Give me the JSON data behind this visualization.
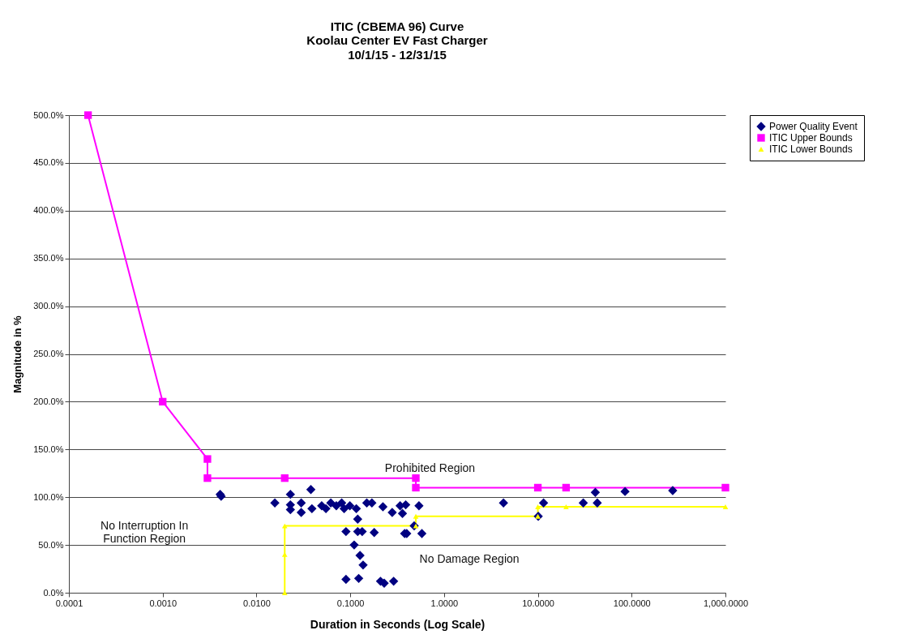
{
  "chart_data": {
    "type": "scatter",
    "title": "ITIC (CBEMA 96) Curve",
    "subtitle": "Koolau Center EV Fast Charger\n10/1/15 - 12/31/15",
    "xlabel": "Duration in Seconds (Log Scale)",
    "ylabel": "Magnitude in %",
    "log": "x",
    "grid": "y",
    "legend": "right",
    "xlim": [
      0.0001,
      1000
    ],
    "xticks": [
      {
        "value": 0.0001,
        "label": "0.0001"
      },
      {
        "value": 0.001,
        "label": "0.0010"
      },
      {
        "value": 0.01,
        "label": "0.0100"
      },
      {
        "value": 0.1,
        "label": "0.1000"
      },
      {
        "value": 1,
        "label": "1.0000"
      },
      {
        "value": 10,
        "label": "10.0000"
      },
      {
        "value": 100,
        "label": "100.0000"
      },
      {
        "value": 1000,
        "label": "1,000.0000"
      }
    ],
    "ylim": [
      0,
      500
    ],
    "yticks": [
      {
        "value": 0,
        "label": "0.0%"
      },
      {
        "value": 50,
        "label": "50.0%"
      },
      {
        "value": 100,
        "label": "100.0%"
      },
      {
        "value": 150,
        "label": "150.0%"
      },
      {
        "value": 200,
        "label": "200.0%"
      },
      {
        "value": 250,
        "label": "250.0%"
      },
      {
        "value": 300,
        "label": "300.0%"
      },
      {
        "value": 350,
        "label": "350.0%"
      },
      {
        "value": 400,
        "label": "400.0%"
      },
      {
        "value": 450,
        "label": "450.0%"
      },
      {
        "value": 500,
        "label": "500.0%"
      }
    ],
    "series": [
      {
        "name": "Power Quality Event",
        "type": "scatter",
        "marker": "diamond",
        "color": "#000080",
        "x": [
          0.0041,
          0.0042,
          0.0157,
          0.023,
          0.023,
          0.023,
          0.03,
          0.03,
          0.038,
          0.039,
          0.0496,
          0.055,
          0.062,
          0.071,
          0.081,
          0.086,
          0.099,
          0.116,
          0.12,
          0.09,
          0.12,
          0.134,
          0.11,
          0.127,
          0.137,
          0.09,
          0.123,
          0.15,
          0.17,
          0.18,
          0.223,
          0.21,
          0.23,
          0.29,
          0.28,
          0.34,
          0.36,
          0.38,
          0.4,
          0.39,
          0.54,
          0.48,
          0.58,
          4.3,
          10.1,
          11.5,
          30.5,
          41,
          43,
          85,
          274
        ],
        "values": [
          103,
          101,
          94,
          103,
          92,
          87,
          94,
          84,
          108,
          88,
          91,
          88,
          94,
          91,
          94,
          88,
          91,
          88,
          77,
          64,
          64,
          64,
          50,
          39,
          29,
          14,
          15,
          94,
          94,
          63,
          90,
          12,
          10,
          12,
          84,
          91,
          83,
          62,
          62,
          92,
          91,
          70,
          62,
          94,
          80,
          94,
          94,
          105,
          94,
          106,
          107
        ]
      },
      {
        "name": "ITIC Upper Bounds",
        "type": "line",
        "marker": "square",
        "color": "#ff00ff",
        "x": [
          0.00016,
          0.001,
          0.003,
          0.003,
          0.02,
          0.5,
          0.5,
          10,
          20,
          1000
        ],
        "values": [
          500,
          200,
          140,
          120,
          120,
          120,
          110,
          110,
          110,
          110
        ]
      },
      {
        "name": "ITIC Lower Bounds",
        "type": "line",
        "marker": "triangle",
        "color": "#ffff00",
        "x": [
          0.02,
          0.02,
          0.02,
          0.5,
          0.5,
          10,
          10,
          20,
          1000
        ],
        "values": [
          0,
          40,
          70,
          70,
          80,
          80,
          90,
          90,
          90
        ]
      }
    ],
    "annotations": [
      "Prohibited Region",
      "No Interruption In\nFunction Region",
      "No Damage Region"
    ]
  }
}
